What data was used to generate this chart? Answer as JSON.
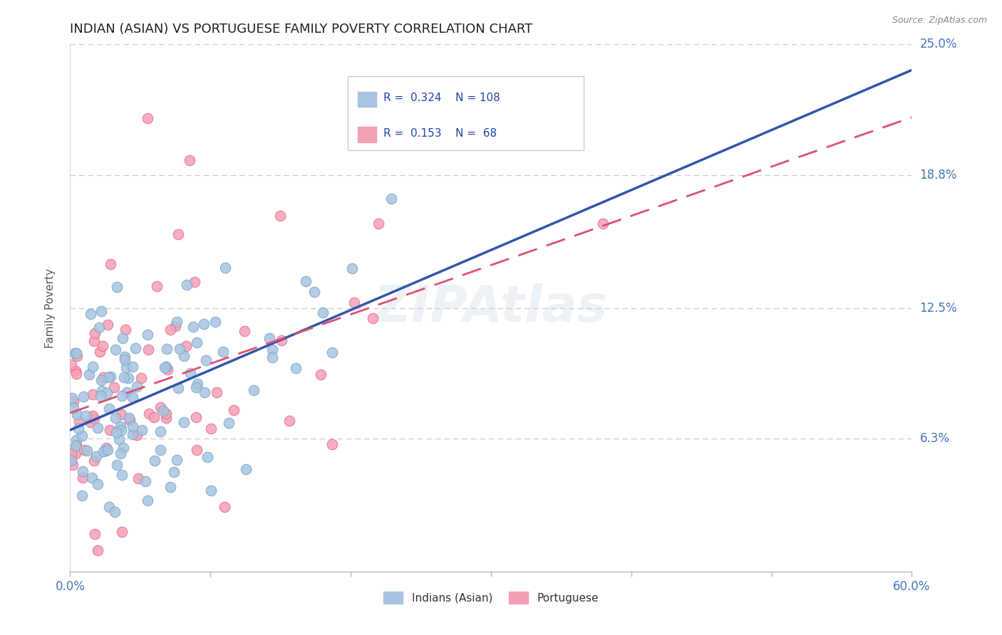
{
  "title": "INDIAN (ASIAN) VS PORTUGUESE FAMILY POVERTY CORRELATION CHART",
  "source": "Source: ZipAtlas.com",
  "ylabel": "Family Poverty",
  "xlim": [
    0.0,
    0.6
  ],
  "ylim": [
    0.0,
    0.25
  ],
  "xtick_positions": [
    0.0,
    0.1,
    0.2,
    0.3,
    0.4,
    0.5,
    0.6
  ],
  "xticklabels_ends": [
    "0.0%",
    "60.0%"
  ],
  "ytick_positions": [
    0.063,
    0.125,
    0.188,
    0.25
  ],
  "ytick_labels": [
    "6.3%",
    "12.5%",
    "18.8%",
    "25.0%"
  ],
  "blue_color": "#A8C4E0",
  "pink_color": "#F4A0B4",
  "blue_edge_color": "#7AAACE",
  "pink_edge_color": "#E87090",
  "blue_line_color": "#3355AA",
  "pink_line_color": "#E05070",
  "grid_color": "#CCCCDD",
  "legend_text_color": "#2244AA",
  "axis_label_color": "#4477BB",
  "R_indian": 0.324,
  "N_indian": 108,
  "R_portuguese": 0.153,
  "N_portuguese": 68,
  "watermark": "ZIPAtlas",
  "legend_labels": [
    "Indians (Asian)",
    "Portuguese"
  ],
  "title_color": "#222222",
  "source_color": "#888888"
}
